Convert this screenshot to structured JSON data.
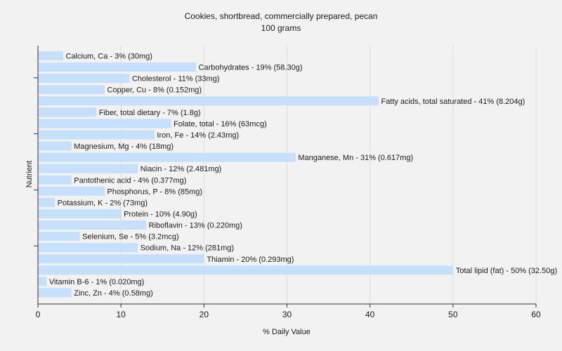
{
  "chart_data": {
    "type": "bar",
    "orientation": "horizontal",
    "title": "Cookies, shortbread, commercially prepared, pecan",
    "subtitle": "100 grams",
    "xlabel": "% Daily Value",
    "ylabel": "Nutrient",
    "xlim": [
      0,
      60
    ],
    "xticks": [
      0,
      10,
      20,
      30,
      40,
      50,
      60
    ],
    "grid": true,
    "bar_color": "#c6e0fb",
    "bar_stroke": "#b0cff0",
    "bars": [
      {
        "category": "Calcium, Ca",
        "value": 3,
        "label": "Calcium, Ca - 3% (30mg)"
      },
      {
        "category": "Carbohydrates",
        "value": 19,
        "label": "Carbohydrates - 19% (58.30g)"
      },
      {
        "category": "Cholesterol",
        "value": 11,
        "label": "Cholesterol - 11% (33mg)"
      },
      {
        "category": "Copper, Cu",
        "value": 8,
        "label": "Copper, Cu - 8% (0.152mg)"
      },
      {
        "category": "Fatty acids, total saturated",
        "value": 41,
        "label": "Fatty acids, total saturated - 41% (8.204g)"
      },
      {
        "category": "Fiber, total dietary",
        "value": 7,
        "label": "Fiber, total dietary - 7% (1.8g)"
      },
      {
        "category": "Folate, total",
        "value": 16,
        "label": "Folate, total - 16% (63mcg)"
      },
      {
        "category": "Iron, Fe",
        "value": 14,
        "label": "Iron, Fe - 14% (2.43mg)"
      },
      {
        "category": "Magnesium, Mg",
        "value": 4,
        "label": "Magnesium, Mg - 4% (18mg)"
      },
      {
        "category": "Manganese, Mn",
        "value": 31,
        "label": "Manganese, Mn - 31% (0.617mg)"
      },
      {
        "category": "Niacin",
        "value": 12,
        "label": "Niacin - 12% (2.481mg)"
      },
      {
        "category": "Pantothenic acid",
        "value": 4,
        "label": "Pantothenic acid - 4% (0.377mg)"
      },
      {
        "category": "Phosphorus, P",
        "value": 8,
        "label": "Phosphorus, P - 8% (85mg)"
      },
      {
        "category": "Potassium, K",
        "value": 2,
        "label": "Potassium, K - 2% (73mg)"
      },
      {
        "category": "Protein",
        "value": 10,
        "label": "Protein - 10% (4.90g)"
      },
      {
        "category": "Riboflavin",
        "value": 13,
        "label": "Riboflavin - 13% (0.220mg)"
      },
      {
        "category": "Selenium, Se",
        "value": 5,
        "label": "Selenium, Se - 5% (3.2mcg)"
      },
      {
        "category": "Sodium, Na",
        "value": 12,
        "label": "Sodium, Na - 12% (281mg)"
      },
      {
        "category": "Thiamin",
        "value": 20,
        "label": "Thiamin - 20% (0.293mg)"
      },
      {
        "category": "Total lipid (fat)",
        "value": 50,
        "label": "Total lipid (fat) - 50% (32.50g)"
      },
      {
        "category": "Vitamin B-6",
        "value": 1,
        "label": "Vitamin B-6 - 1% (0.020mg)"
      },
      {
        "category": "Zinc, Zn",
        "value": 4,
        "label": "Zinc, Zn - 4% (0.58mg)"
      }
    ]
  }
}
